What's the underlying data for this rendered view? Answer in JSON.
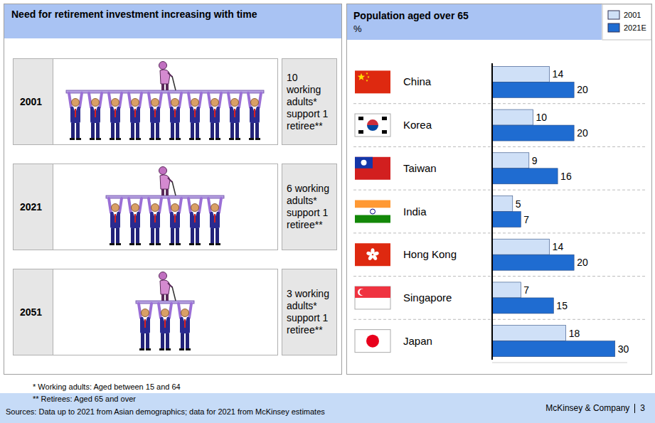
{
  "left_panel": {
    "title": "Need for retirement investment increasing with time",
    "rows": [
      {
        "year": "2001",
        "workers": 10,
        "retirees": 1,
        "text": "10 working adults* support 1 retiree**"
      },
      {
        "year": "2021",
        "workers": 6,
        "retirees": 1,
        "text": "6 working adults* support 1 retiree**"
      },
      {
        "year": "2051",
        "workers": 3,
        "retirees": 1,
        "text": "3 working adults* support 1 retiree**"
      }
    ]
  },
  "chart_data": {
    "type": "bar",
    "orientation": "horizontal",
    "title": "Population aged over 65",
    "subtitle": "%",
    "categories": [
      "China",
      "Korea",
      "Taiwan",
      "India",
      "Hong Kong",
      "Singapore",
      "Japan"
    ],
    "series": [
      {
        "name": "2001",
        "color": "#cfe0f7",
        "values": [
          14,
          10,
          9,
          5,
          14,
          7,
          18
        ]
      },
      {
        "name": "2021E",
        "color": "#1f6cd1",
        "values": [
          20,
          20,
          16,
          7,
          20,
          15,
          30
        ]
      }
    ],
    "xlim": [
      0,
      33
    ],
    "data_labels": true,
    "tick_labels": "y",
    "legend": "top-right",
    "grid": false
  },
  "footnotes": [
    "* Working adults: Aged between 15 and 64",
    "** Retirees: Aged 65 and over"
  ],
  "footer": {
    "source": "Sources: Data up to 2021 from Asian demographics; data for 2021 from McKinsey estimates",
    "company": "McKinsey & Company",
    "page": "3"
  }
}
